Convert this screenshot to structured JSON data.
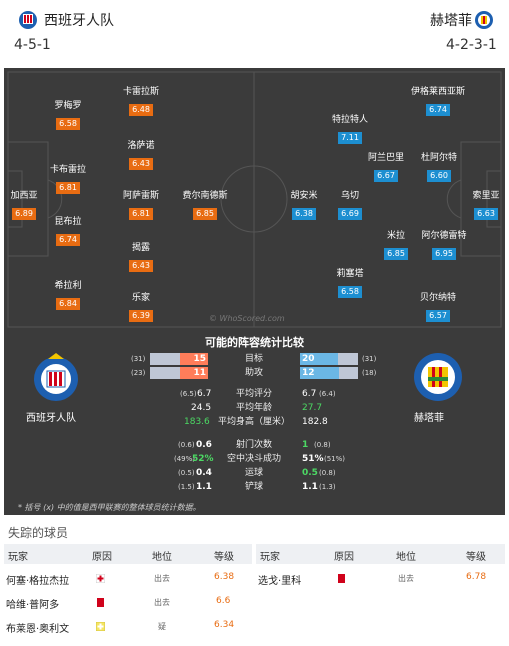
{
  "home": {
    "name": "西班牙人队",
    "formation": "4-5-1",
    "color": "#e86c12",
    "players": [
      {
        "name": "罗梅罗",
        "rating": "6.58"
      },
      {
        "name": "卡雷拉斯",
        "rating": "6.48"
      },
      {
        "name": "洛萨诺",
        "rating": "6.43"
      },
      {
        "name": "卡布雷拉",
        "rating": "6.81"
      },
      {
        "name": "加西亚",
        "rating": "6.89"
      },
      {
        "name": "阿萨雷斯",
        "rating": "6.81"
      },
      {
        "name": "费尔南德斯",
        "rating": "6.85"
      },
      {
        "name": "昆布拉",
        "rating": "6.74"
      },
      {
        "name": "揭露",
        "rating": "6.43"
      },
      {
        "name": "希拉利",
        "rating": "6.84"
      },
      {
        "name": "乐家",
        "rating": "6.39"
      }
    ]
  },
  "away": {
    "name": "赫塔菲",
    "formation": "4-2-3-1",
    "color": "#1d8fd1",
    "players": [
      {
        "name": "伊格莱西亚斯",
        "rating": "6.74"
      },
      {
        "name": "特拉特人",
        "rating": "7.11"
      },
      {
        "name": "阿兰巴里",
        "rating": "6.67"
      },
      {
        "name": "杜阿尔特",
        "rating": "6.60"
      },
      {
        "name": "胡安米",
        "rating": "6.38"
      },
      {
        "name": "乌切",
        "rating": "6.69"
      },
      {
        "name": "索里亚",
        "rating": "6.63"
      },
      {
        "name": "米拉",
        "rating": "6.85"
      },
      {
        "name": "阿尔德雷特",
        "rating": "6.95"
      },
      {
        "name": "莉塞塔",
        "rating": "6.58"
      },
      {
        "name": "贝尔纳特",
        "rating": "6.57"
      }
    ]
  },
  "watermark": "© WhoScored.com",
  "comparison": {
    "title": "可能的阵容统计比较",
    "home_label": "西班牙人队",
    "away_label": "赫塔菲",
    "bars": [
      {
        "label": "目标",
        "home": "15",
        "home_total": "(31)",
        "home_fraction": 0.48,
        "away": "20",
        "away_total": "(31)",
        "away_fraction": 0.65
      },
      {
        "label": "助攻",
        "home": "11",
        "home_total": "(23)",
        "home_fraction": 0.48,
        "away": "12",
        "away_total": "(18)",
        "away_fraction": 0.67
      }
    ],
    "stats": [
      {
        "label": "平均评分",
        "home": "6.7",
        "home_paren": "(6.5)",
        "away": "6.7",
        "away_paren": "(6.4)"
      },
      {
        "label": "平均年龄",
        "home": "24.5",
        "home_paren": "",
        "away": "27.7",
        "away_paren": ""
      },
      {
        "label": "平均身高（厘米）",
        "home": "183.6",
        "home_paren": "",
        "away": "182.8",
        "away_paren": ""
      },
      {
        "label": "射门次数",
        "home": "0.6",
        "home_paren": "(0.6)",
        "away": "1",
        "away_paren": "(0.8)"
      },
      {
        "label": "空中决斗成功",
        "home": "52%",
        "home_paren": "(49%)",
        "away": "51%",
        "away_paren": "(51%)"
      },
      {
        "label": "运球",
        "home": "0.4",
        "home_paren": "(0.5)",
        "away": "0.5",
        "away_paren": "(0.8)"
      },
      {
        "label": "铲球",
        "home": "1.1",
        "home_paren": "(1.5)",
        "away": "1.1",
        "away_paren": "(1.3)"
      }
    ],
    "note": "* 括号 (x) 中的值是西甲联赛的整体球员统计数据。"
  },
  "missing": {
    "title": "失踪的球员",
    "headers": {
      "player": "玩家",
      "reason": "原因",
      "position": "地位",
      "rating": "等级"
    },
    "home": [
      {
        "name": "何塞·格拉杰拉",
        "reason": "injury",
        "position": "出去",
        "rating": "6.38"
      },
      {
        "name": "哈维·普阿多",
        "reason": "red-card",
        "position": "出去",
        "rating": "6.6"
      },
      {
        "name": "布莱恩·奥利文",
        "reason": "doubt",
        "position": "疑",
        "rating": "6.34"
      }
    ],
    "away": [
      {
        "name": "选戈·里科",
        "reason": "red-card",
        "position": "出去",
        "rating": "6.78"
      }
    ]
  }
}
